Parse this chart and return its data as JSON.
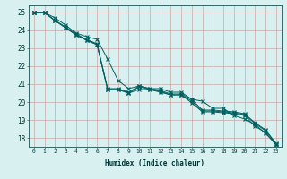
{
  "title": "",
  "xlabel": "Humidex (Indice chaleur)",
  "ylabel": "",
  "background_color": "#d8f0f0",
  "plot_bg_color": "#d8f0f0",
  "grid_color": "#c8a0a0",
  "line_color": "#006060",
  "xlim": [
    -0.5,
    23.5
  ],
  "ylim": [
    17.5,
    25.4
  ],
  "xticks": [
    0,
    1,
    2,
    3,
    4,
    5,
    6,
    7,
    8,
    9,
    10,
    11,
    12,
    13,
    14,
    15,
    16,
    17,
    18,
    19,
    20,
    21,
    22,
    23
  ],
  "yticks": [
    18,
    19,
    20,
    21,
    22,
    23,
    24,
    25
  ],
  "series": [
    [
      25.0,
      25.0,
      24.7,
      24.3,
      23.85,
      23.65,
      23.5,
      22.4,
      21.2,
      20.75,
      20.9,
      20.75,
      20.75,
      20.55,
      20.55,
      20.15,
      20.05,
      19.65,
      19.65,
      19.25,
      19.05,
      18.75,
      18.25,
      17.65
    ],
    [
      25.0,
      25.0,
      24.55,
      24.2,
      23.8,
      23.5,
      23.25,
      20.75,
      20.75,
      20.55,
      20.9,
      20.75,
      20.65,
      20.45,
      20.45,
      20.15,
      19.55,
      19.55,
      19.5,
      19.45,
      19.35,
      18.85,
      18.45,
      17.7
    ],
    [
      25.0,
      25.0,
      24.55,
      24.15,
      23.75,
      23.45,
      23.2,
      20.7,
      20.7,
      20.5,
      20.85,
      20.7,
      20.6,
      20.4,
      20.4,
      20.05,
      19.5,
      19.5,
      19.45,
      19.4,
      19.3,
      18.8,
      18.4,
      17.65
    ],
    [
      25.0,
      25.0,
      24.55,
      24.15,
      23.75,
      23.45,
      23.2,
      20.7,
      20.7,
      20.5,
      20.7,
      20.7,
      20.55,
      20.4,
      20.4,
      19.95,
      19.45,
      19.45,
      19.4,
      19.35,
      19.25,
      18.65,
      18.3,
      17.6
    ]
  ]
}
